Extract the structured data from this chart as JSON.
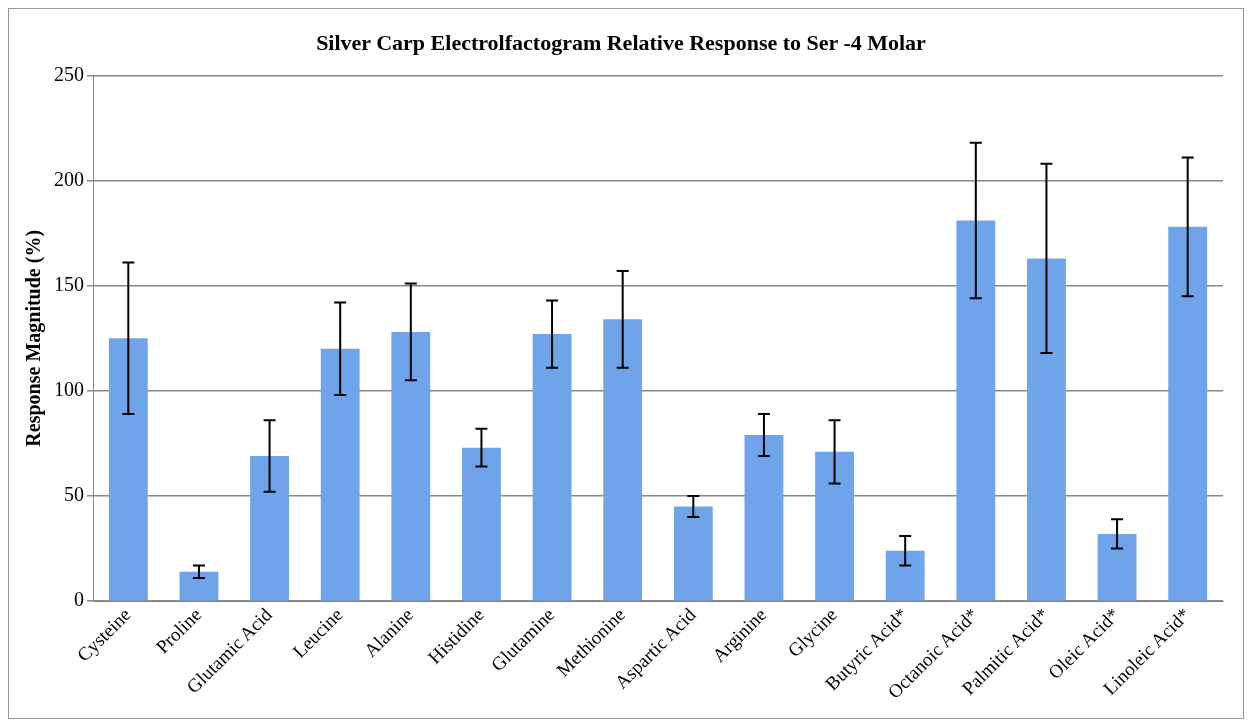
{
  "chart_data": {
    "type": "bar",
    "title": "Silver Carp Electrolfactogram Relative Response to Ser -4 Molar",
    "ylabel": "Response Magnitude (%)",
    "categories": [
      "Cysteine",
      "Proline",
      "Glutamic Acid",
      "Leucine",
      "Alanine",
      "Histidine",
      "Glutamine",
      "Methionine",
      "Aspartic Acid",
      "Arginine",
      "Glycine",
      "Butyric Acid*",
      "Octanoic Acid*",
      "Palmitic Acid*",
      "Oleic Acid*",
      "Linoleic Acid*"
    ],
    "values": [
      125,
      14,
      69,
      120,
      128,
      73,
      127,
      134,
      45,
      79,
      71,
      24,
      181,
      163,
      32,
      178
    ],
    "errors": [
      36,
      3,
      17,
      22,
      23,
      9,
      16,
      23,
      5,
      10,
      15,
      7,
      37,
      45,
      7,
      33
    ],
    "color": "#6fa3ea",
    "ylim": [
      0,
      250
    ],
    "yticks": [
      0,
      50,
      100,
      150,
      200,
      250
    ],
    "grid": "y",
    "legend": false
  }
}
